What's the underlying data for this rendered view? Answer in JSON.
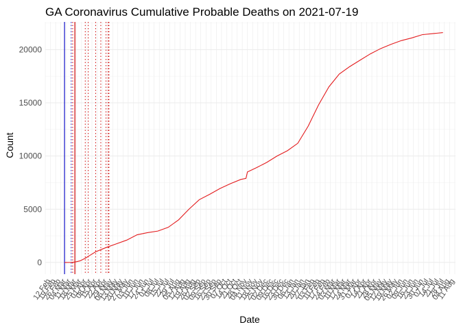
{
  "chart_data": {
    "type": "line",
    "title": "GA Coronavirus Cumulative Probable Deaths on 2021-07-19",
    "xlabel": "Date",
    "ylabel": "Count",
    "xlim": [
      "2020-02-05",
      "2021-08-12"
    ],
    "ylim": [
      -1100,
      22600
    ],
    "grid": true,
    "colors": {
      "series": "#e31a1c",
      "blue_vline": "#1010c8",
      "red_vline": "#cc0000",
      "grid_major": "#ebebeb",
      "grid_minor": "#f3f3f3"
    },
    "y_ticks": [
      0,
      5000,
      10000,
      15000,
      20000
    ],
    "x_tick_labels": [
      "12 Feb",
      "19 Feb",
      "26 Feb",
      "04 Mar",
      "11 Mar",
      "18 Mar",
      "25 Mar",
      "01 Apr",
      "08 Apr",
      "15 Apr",
      "22 Apr",
      "29 Apr",
      "06 May",
      "13 May",
      "20 May",
      "27 May",
      "03 Jun",
      "10 Jun",
      "17 Jun",
      "24 Jun",
      "01 Jul",
      "08 Jul",
      "15 Jul",
      "22 Jul",
      "29 Jul",
      "05 Aug",
      "12 Aug",
      "19 Aug",
      "26 Aug",
      "02 Sep",
      "09 Sep",
      "16 Sep",
      "23 Sep",
      "30 Sep",
      "07 Oct",
      "14 Oct",
      "21 Oct",
      "28 Oct",
      "04 Nov",
      "11 Nov",
      "18 Nov",
      "25 Nov",
      "02 Dec",
      "09 Dec",
      "16 Dec",
      "23 Dec",
      "30 Dec",
      "06 Jan",
      "13 Jan",
      "20 Jan",
      "27 Jan",
      "03 Feb",
      "10 Feb",
      "17 Feb",
      "24 Feb",
      "03 Mar",
      "10 Mar",
      "17 Mar",
      "24 Mar",
      "31 Mar",
      "07 Apr",
      "14 Apr",
      "21 Apr",
      "28 Apr",
      "05 May",
      "12 May",
      "19 May",
      "26 May",
      "02 Jun",
      "09 Jun",
      "16 Jun",
      "23 Jun",
      "30 Jun",
      "07 Jul",
      "14 Jul",
      "21 Jul",
      "28 Jul",
      "04 Aug",
      "11 Aug"
    ],
    "vertical_lines": [
      {
        "date": "2020-03-02",
        "color": "blue",
        "style": "solid"
      },
      {
        "date": "2020-03-16",
        "color": "red",
        "style": "solid"
      },
      {
        "date": "2020-03-11",
        "color": "blue",
        "style": "dotted"
      },
      {
        "date": "2020-03-13",
        "color": "red",
        "style": "dotted"
      },
      {
        "date": "2020-03-30",
        "color": "red",
        "style": "dotted"
      },
      {
        "date": "2020-04-03",
        "color": "red",
        "style": "dotted"
      },
      {
        "date": "2020-04-13",
        "color": "red",
        "style": "dotted"
      },
      {
        "date": "2020-04-20",
        "color": "red",
        "style": "dotted"
      },
      {
        "date": "2020-04-27",
        "color": "red",
        "style": "dotted"
      },
      {
        "date": "2020-04-30",
        "color": "red",
        "style": "dotted"
      },
      {
        "date": "2020-05-01",
        "color": "red",
        "style": "dotted"
      }
    ],
    "series": [
      {
        "points": [
          {
            "x": "2020-03-02",
            "y": 0
          },
          {
            "x": "2020-03-11",
            "y": 5
          },
          {
            "x": "2020-03-16",
            "y": 40
          },
          {
            "x": "2020-03-23",
            "y": 150
          },
          {
            "x": "2020-03-30",
            "y": 400
          },
          {
            "x": "2020-04-06",
            "y": 700
          },
          {
            "x": "2020-04-13",
            "y": 1000
          },
          {
            "x": "2020-04-27",
            "y": 1400
          },
          {
            "x": "2020-05-11",
            "y": 1750
          },
          {
            "x": "2020-05-25",
            "y": 2100
          },
          {
            "x": "2020-06-08",
            "y": 2600
          },
          {
            "x": "2020-06-22",
            "y": 2800
          },
          {
            "x": "2020-07-06",
            "y": 2950
          },
          {
            "x": "2020-07-20",
            "y": 3300
          },
          {
            "x": "2020-08-03",
            "y": 4000
          },
          {
            "x": "2020-08-17",
            "y": 5000
          },
          {
            "x": "2020-08-31",
            "y": 5900
          },
          {
            "x": "2020-09-14",
            "y": 6400
          },
          {
            "x": "2020-09-28",
            "y": 6950
          },
          {
            "x": "2020-10-12",
            "y": 7400
          },
          {
            "x": "2020-10-26",
            "y": 7800
          },
          {
            "x": "2020-11-02",
            "y": 7900
          },
          {
            "x": "2020-11-04",
            "y": 8500
          },
          {
            "x": "2020-11-16",
            "y": 8900
          },
          {
            "x": "2020-11-30",
            "y": 9400
          },
          {
            "x": "2020-12-14",
            "y": 10000
          },
          {
            "x": "2020-12-28",
            "y": 10500
          },
          {
            "x": "2021-01-11",
            "y": 11200
          },
          {
            "x": "2021-01-25",
            "y": 12800
          },
          {
            "x": "2021-02-08",
            "y": 14800
          },
          {
            "x": "2021-02-22",
            "y": 16500
          },
          {
            "x": "2021-03-08",
            "y": 17700
          },
          {
            "x": "2021-03-22",
            "y": 18400
          },
          {
            "x": "2021-04-05",
            "y": 19000
          },
          {
            "x": "2021-04-19",
            "y": 19600
          },
          {
            "x": "2021-05-03",
            "y": 20100
          },
          {
            "x": "2021-05-17",
            "y": 20500
          },
          {
            "x": "2021-05-31",
            "y": 20850
          },
          {
            "x": "2021-06-14",
            "y": 21100
          },
          {
            "x": "2021-06-28",
            "y": 21400
          },
          {
            "x": "2021-07-12",
            "y": 21500
          },
          {
            "x": "2021-07-26",
            "y": 21600
          }
        ]
      }
    ]
  }
}
